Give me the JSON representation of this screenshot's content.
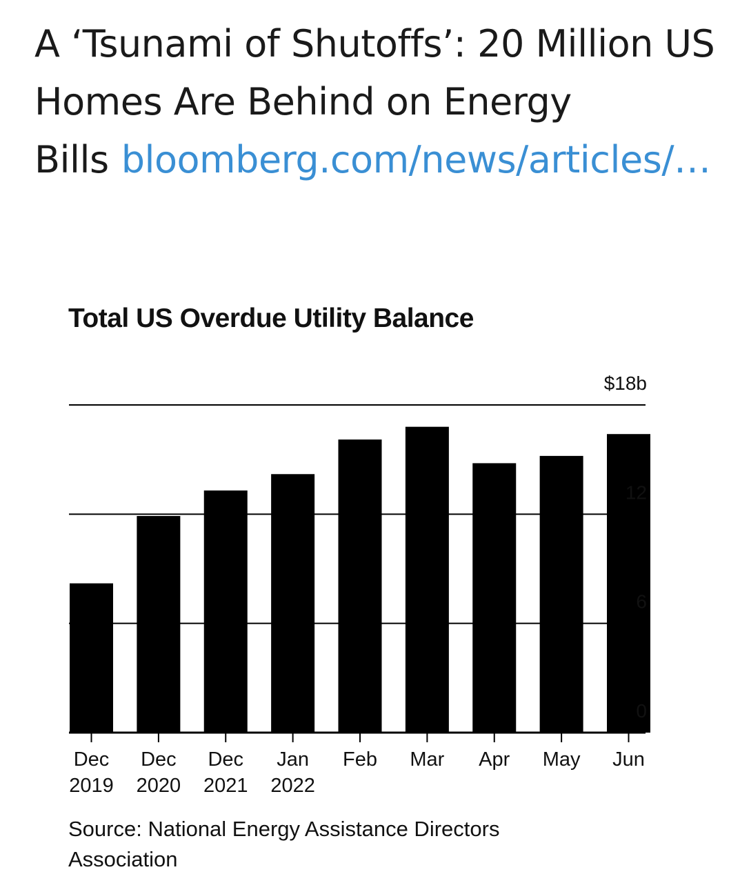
{
  "tweet": {
    "text": "A ‘Tsunami of Shutoffs’: 20 Million US Homes Are Behind on Energy Bills",
    "link": "bloomberg.com/news/articles/…"
  },
  "chart_data": {
    "type": "bar",
    "title": "Total US Overdue Utility Balance",
    "categories": [
      "Dec 2019",
      "Dec 2020",
      "Dec 2021",
      "Jan 2022",
      "Feb",
      "Mar",
      "Apr",
      "May",
      "Jun"
    ],
    "category_lines": [
      [
        "Dec",
        "2019"
      ],
      [
        "Dec",
        "2020"
      ],
      [
        "Dec",
        "2021"
      ],
      [
        "Jan",
        "2022"
      ],
      [
        "Feb",
        ""
      ],
      [
        "Mar",
        ""
      ],
      [
        "Apr",
        ""
      ],
      [
        "May",
        ""
      ],
      [
        "Jun",
        ""
      ]
    ],
    "values": [
      8.2,
      11.9,
      13.3,
      14.2,
      16.1,
      16.8,
      14.8,
      15.2,
      16.4
    ],
    "ylim": [
      0,
      18
    ],
    "yticks": [
      0,
      6,
      12,
      18
    ],
    "ytick_labels": [
      "0",
      "6",
      "12",
      "$18b"
    ],
    "xlabel": "",
    "ylabel": "",
    "grid": true,
    "bar_color": "#000000",
    "source": "Source: National Energy Assistance Directors Association"
  }
}
